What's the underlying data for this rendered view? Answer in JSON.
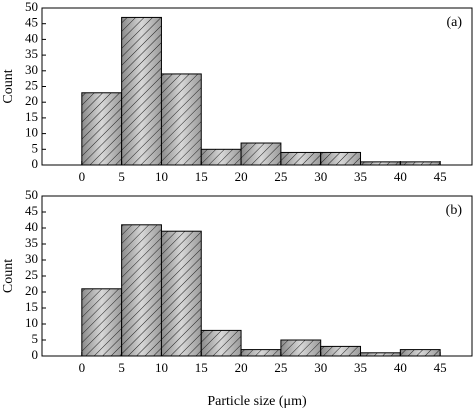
{
  "chart_data": [
    {
      "type": "histogram",
      "annotation": "(a)",
      "ylabel": "Count",
      "bins": [
        0,
        5,
        10,
        15,
        20,
        25,
        30,
        35,
        40,
        45
      ],
      "values": [
        23,
        47,
        29,
        5,
        7,
        4,
        4,
        1,
        1
      ],
      "xlim": [
        -5,
        49
      ],
      "xticks": [
        0,
        5,
        10,
        15,
        20,
        25,
        30,
        35,
        40,
        45
      ],
      "ylim": [
        0,
        50
      ],
      "yticks": [
        0,
        5,
        10,
        15,
        20,
        25,
        30,
        35,
        40,
        45,
        50
      ]
    },
    {
      "type": "histogram",
      "annotation": "(b)",
      "ylabel": "Count",
      "xlabel": "Particle size (μm)",
      "bins": [
        0,
        5,
        10,
        15,
        20,
        25,
        30,
        35,
        40,
        45
      ],
      "values": [
        21,
        41,
        39,
        8,
        2,
        5,
        3,
        1,
        2
      ],
      "xlim": [
        -5,
        49
      ],
      "xticks": [
        0,
        5,
        10,
        15,
        20,
        25,
        30,
        35,
        40,
        45
      ],
      "ylim": [
        0,
        50
      ],
      "yticks": [
        0,
        5,
        10,
        15,
        20,
        25,
        30,
        35,
        40,
        45,
        50
      ]
    }
  ]
}
